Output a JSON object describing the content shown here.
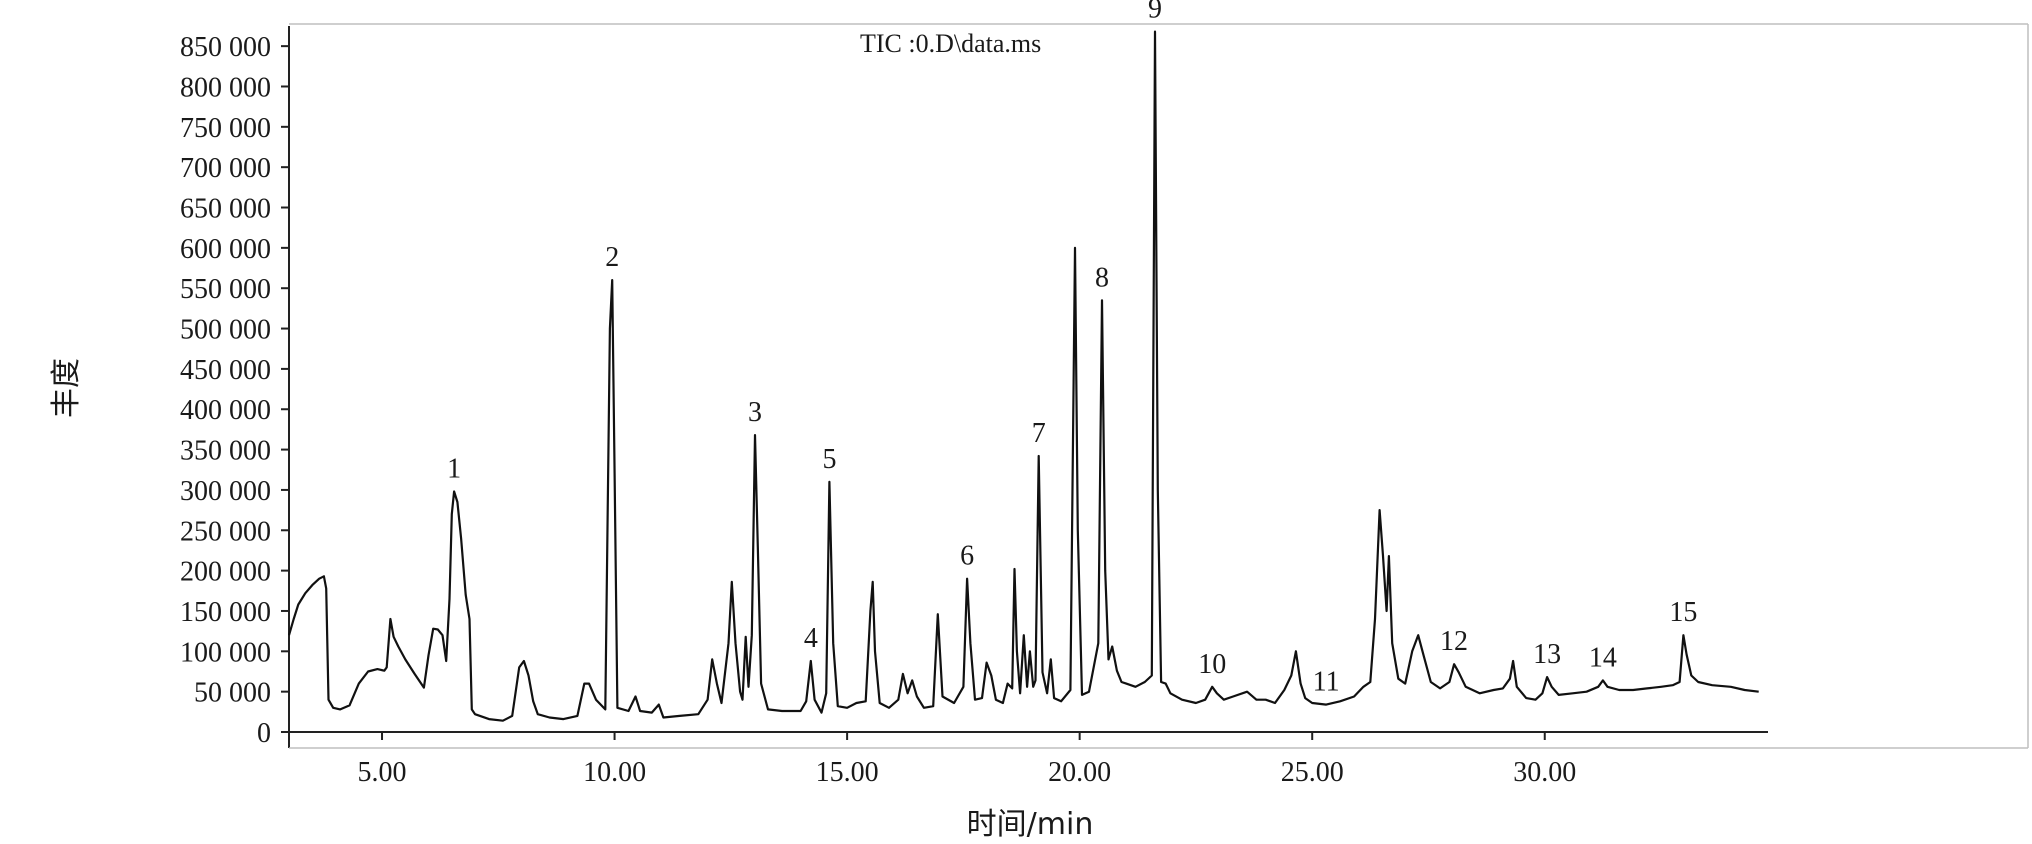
{
  "chart_data": {
    "type": "line",
    "title": "TIC :0.D\\data.ms",
    "xlabel": "时间/min",
    "ylabel": "丰度",
    "xlim": [
      3.0,
      34.8
    ],
    "ylim": [
      0,
      870000
    ],
    "x_ticks": [
      5,
      10,
      15,
      20,
      25,
      30
    ],
    "x_tick_labels": [
      "5.00",
      "10.00",
      "15.00",
      "20.00",
      "25.00",
      "30.00"
    ],
    "y_ticks": [
      0,
      50000,
      100000,
      150000,
      200000,
      250000,
      300000,
      350000,
      400000,
      450000,
      500000,
      550000,
      600000,
      650000,
      700000,
      750000,
      800000,
      850000
    ],
    "y_tick_labels": [
      "0",
      "50 000",
      "100 000",
      "150 000",
      "200 000",
      "250 000",
      "300 000",
      "350 000",
      "400 000",
      "450 000",
      "500 000",
      "550 000",
      "600 000",
      "650 000",
      "700 000",
      "750 000",
      "800 000",
      "850 000"
    ],
    "grid": false,
    "series": [
      {
        "points": [
          [
            3.0,
            120000
          ],
          [
            3.1,
            140000
          ],
          [
            3.2,
            158000
          ],
          [
            3.35,
            172000
          ],
          [
            3.5,
            182000
          ],
          [
            3.65,
            190000
          ],
          [
            3.75,
            193000
          ],
          [
            3.8,
            178000
          ],
          [
            3.85,
            40000
          ],
          [
            3.95,
            30000
          ],
          [
            4.1,
            28000
          ],
          [
            4.3,
            33000
          ],
          [
            4.5,
            60000
          ],
          [
            4.7,
            75000
          ],
          [
            4.9,
            78000
          ],
          [
            5.05,
            76000
          ],
          [
            5.1,
            80000
          ],
          [
            5.18,
            140000
          ],
          [
            5.25,
            118000
          ],
          [
            5.35,
            106000
          ],
          [
            5.5,
            90000
          ],
          [
            5.7,
            72000
          ],
          [
            5.9,
            55000
          ],
          [
            6.0,
            95000
          ],
          [
            6.1,
            128000
          ],
          [
            6.2,
            127000
          ],
          [
            6.3,
            120000
          ],
          [
            6.38,
            88000
          ],
          [
            6.45,
            165000
          ],
          [
            6.5,
            270000
          ],
          [
            6.55,
            298000
          ],
          [
            6.62,
            285000
          ],
          [
            6.7,
            240000
          ],
          [
            6.8,
            170000
          ],
          [
            6.88,
            140000
          ],
          [
            6.93,
            28000
          ],
          [
            7.0,
            22000
          ],
          [
            7.3,
            16000
          ],
          [
            7.6,
            14000
          ],
          [
            7.8,
            20000
          ],
          [
            7.95,
            80000
          ],
          [
            8.05,
            88000
          ],
          [
            8.15,
            70000
          ],
          [
            8.25,
            38000
          ],
          [
            8.35,
            22000
          ],
          [
            8.6,
            18000
          ],
          [
            8.9,
            16000
          ],
          [
            9.2,
            20000
          ],
          [
            9.35,
            60000
          ],
          [
            9.45,
            60000
          ],
          [
            9.6,
            40000
          ],
          [
            9.8,
            28000
          ],
          [
            9.9,
            500000
          ],
          [
            9.95,
            560000
          ],
          [
            10.0,
            320000
          ],
          [
            10.06,
            30000
          ],
          [
            10.3,
            26000
          ],
          [
            10.45,
            44000
          ],
          [
            10.55,
            26000
          ],
          [
            10.8,
            24000
          ],
          [
            10.95,
            34000
          ],
          [
            11.05,
            18000
          ],
          [
            11.4,
            20000
          ],
          [
            11.8,
            22000
          ],
          [
            12.0,
            40000
          ],
          [
            12.1,
            90000
          ],
          [
            12.2,
            60000
          ],
          [
            12.3,
            36000
          ],
          [
            12.45,
            110000
          ],
          [
            12.52,
            186000
          ],
          [
            12.6,
            110000
          ],
          [
            12.7,
            50000
          ],
          [
            12.75,
            40000
          ],
          [
            12.82,
            118000
          ],
          [
            12.88,
            56000
          ],
          [
            12.95,
            120000
          ],
          [
            13.02,
            368000
          ],
          [
            13.08,
            230000
          ],
          [
            13.15,
            60000
          ],
          [
            13.3,
            28000
          ],
          [
            13.6,
            26000
          ],
          [
            14.0,
            26000
          ],
          [
            14.12,
            38000
          ],
          [
            14.22,
            88000
          ],
          [
            14.3,
            40000
          ],
          [
            14.45,
            24000
          ],
          [
            14.55,
            48000
          ],
          [
            14.62,
            310000
          ],
          [
            14.7,
            110000
          ],
          [
            14.8,
            32000
          ],
          [
            15.0,
            30000
          ],
          [
            15.2,
            36000
          ],
          [
            15.4,
            38000
          ],
          [
            15.5,
            150000
          ],
          [
            15.55,
            186000
          ],
          [
            15.6,
            100000
          ],
          [
            15.7,
            36000
          ],
          [
            15.9,
            30000
          ],
          [
            16.1,
            40000
          ],
          [
            16.2,
            72000
          ],
          [
            16.3,
            48000
          ],
          [
            16.4,
            64000
          ],
          [
            16.5,
            44000
          ],
          [
            16.65,
            30000
          ],
          [
            16.85,
            32000
          ],
          [
            16.95,
            146000
          ],
          [
            17.05,
            44000
          ],
          [
            17.3,
            36000
          ],
          [
            17.5,
            56000
          ],
          [
            17.58,
            190000
          ],
          [
            17.65,
            110000
          ],
          [
            17.75,
            40000
          ],
          [
            17.9,
            42000
          ],
          [
            18.0,
            86000
          ],
          [
            18.1,
            70000
          ],
          [
            18.2,
            40000
          ],
          [
            18.35,
            36000
          ],
          [
            18.45,
            60000
          ],
          [
            18.55,
            54000
          ],
          [
            18.6,
            202000
          ],
          [
            18.65,
            100000
          ],
          [
            18.72,
            48000
          ],
          [
            18.8,
            120000
          ],
          [
            18.87,
            56000
          ],
          [
            18.93,
            100000
          ],
          [
            19.0,
            56000
          ],
          [
            19.05,
            64000
          ],
          [
            19.12,
            342000
          ],
          [
            19.2,
            74000
          ],
          [
            19.3,
            48000
          ],
          [
            19.38,
            90000
          ],
          [
            19.45,
            42000
          ],
          [
            19.6,
            38000
          ],
          [
            19.8,
            52000
          ],
          [
            19.9,
            600000
          ],
          [
            19.96,
            250000
          ],
          [
            20.05,
            46000
          ],
          [
            20.2,
            50000
          ],
          [
            20.4,
            110000
          ],
          [
            20.48,
            535000
          ],
          [
            20.55,
            200000
          ],
          [
            20.62,
            90000
          ],
          [
            20.7,
            106000
          ],
          [
            20.8,
            76000
          ],
          [
            20.9,
            62000
          ],
          [
            21.0,
            60000
          ],
          [
            21.2,
            56000
          ],
          [
            21.4,
            62000
          ],
          [
            21.55,
            70000
          ],
          [
            21.62,
            868000
          ],
          [
            21.68,
            300000
          ],
          [
            21.75,
            62000
          ],
          [
            21.85,
            60000
          ],
          [
            21.95,
            48000
          ],
          [
            22.2,
            40000
          ],
          [
            22.5,
            36000
          ],
          [
            22.7,
            40000
          ],
          [
            22.85,
            56000
          ],
          [
            22.95,
            48000
          ],
          [
            23.1,
            40000
          ],
          [
            23.3,
            44000
          ],
          [
            23.6,
            50000
          ],
          [
            23.8,
            40000
          ],
          [
            24.0,
            40000
          ],
          [
            24.2,
            36000
          ],
          [
            24.4,
            52000
          ],
          [
            24.55,
            70000
          ],
          [
            24.65,
            100000
          ],
          [
            24.75,
            60000
          ],
          [
            24.85,
            42000
          ],
          [
            25.0,
            36000
          ],
          [
            25.3,
            34000
          ],
          [
            25.6,
            38000
          ],
          [
            25.9,
            44000
          ],
          [
            26.1,
            56000
          ],
          [
            26.25,
            62000
          ],
          [
            26.35,
            140000
          ],
          [
            26.45,
            275000
          ],
          [
            26.52,
            220000
          ],
          [
            26.6,
            150000
          ],
          [
            26.65,
            218000
          ],
          [
            26.72,
            110000
          ],
          [
            26.85,
            66000
          ],
          [
            27.0,
            60000
          ],
          [
            27.15,
            100000
          ],
          [
            27.28,
            120000
          ],
          [
            27.4,
            94000
          ],
          [
            27.55,
            62000
          ],
          [
            27.75,
            54000
          ],
          [
            27.95,
            62000
          ],
          [
            28.05,
            84000
          ],
          [
            28.15,
            74000
          ],
          [
            28.3,
            56000
          ],
          [
            28.6,
            48000
          ],
          [
            28.9,
            52000
          ],
          [
            29.1,
            54000
          ],
          [
            29.25,
            66000
          ],
          [
            29.32,
            88000
          ],
          [
            29.4,
            56000
          ],
          [
            29.6,
            42000
          ],
          [
            29.8,
            40000
          ],
          [
            29.95,
            48000
          ],
          [
            30.05,
            68000
          ],
          [
            30.15,
            56000
          ],
          [
            30.3,
            46000
          ],
          [
            30.6,
            48000
          ],
          [
            30.9,
            50000
          ],
          [
            31.15,
            56000
          ],
          [
            31.25,
            64000
          ],
          [
            31.35,
            56000
          ],
          [
            31.6,
            52000
          ],
          [
            31.9,
            52000
          ],
          [
            32.2,
            54000
          ],
          [
            32.5,
            56000
          ],
          [
            32.75,
            58000
          ],
          [
            32.9,
            62000
          ],
          [
            32.98,
            120000
          ],
          [
            33.05,
            96000
          ],
          [
            33.15,
            70000
          ],
          [
            33.3,
            62000
          ],
          [
            33.6,
            58000
          ],
          [
            34.0,
            56000
          ],
          [
            34.3,
            52000
          ],
          [
            34.6,
            50000
          ]
        ]
      }
    ],
    "annotations": [
      {
        "text": "1",
        "x": 6.55,
        "y": 298000
      },
      {
        "text": "2",
        "x": 9.95,
        "y": 560000
      },
      {
        "text": "3",
        "x": 13.02,
        "y": 368000
      },
      {
        "text": "4",
        "x": 14.22,
        "y": 88000
      },
      {
        "text": "5",
        "x": 14.62,
        "y": 310000
      },
      {
        "text": "6",
        "x": 17.58,
        "y": 190000
      },
      {
        "text": "7",
        "x": 19.12,
        "y": 342000
      },
      {
        "text": "8",
        "x": 20.48,
        "y": 535000
      },
      {
        "text": "9",
        "x": 21.62,
        "y": 868000
      },
      {
        "text": "10",
        "x": 22.85,
        "y": 56000
      },
      {
        "text": "11",
        "x": 25.3,
        "y": 34000
      },
      {
        "text": "12",
        "x": 28.05,
        "y": 84000
      },
      {
        "text": "13",
        "x": 30.05,
        "y": 68000
      },
      {
        "text": "14",
        "x": 31.25,
        "y": 64000
      },
      {
        "text": "15",
        "x": 32.98,
        "y": 120000
      }
    ]
  }
}
